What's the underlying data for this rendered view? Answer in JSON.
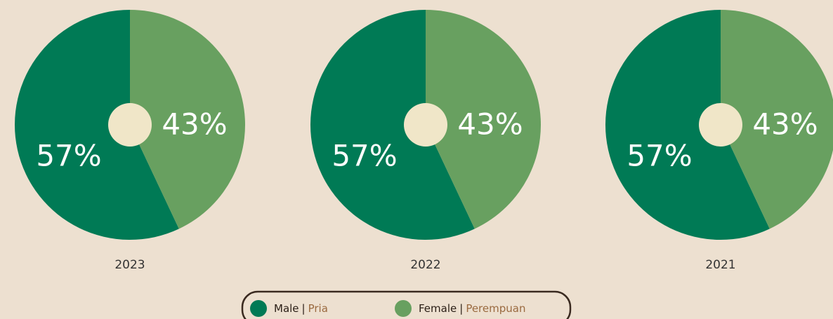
{
  "chart_data": [
    {
      "type": "pie",
      "label": "2023",
      "values": [
        57,
        43
      ],
      "value_labels": [
        "57%",
        "43%"
      ],
      "colors": [
        "#007a55",
        "#68a060"
      ]
    },
    {
      "type": "pie",
      "label": "2022",
      "values": [
        57,
        43
      ],
      "value_labels": [
        "57%",
        "43%"
      ],
      "colors": [
        "#007a55",
        "#68a060"
      ]
    },
    {
      "type": "pie",
      "label": "2021",
      "values": [
        57,
        43
      ],
      "value_labels": [
        "57%",
        "43%"
      ],
      "colors": [
        "#007a55",
        "#68a060"
      ]
    }
  ],
  "legend": [
    {
      "name": "Male",
      "separator": "|",
      "local": "Pria",
      "color": "#007a55"
    },
    {
      "name": "Female",
      "separator": "|",
      "local": "Perempuan",
      "color": "#68a060"
    }
  ]
}
